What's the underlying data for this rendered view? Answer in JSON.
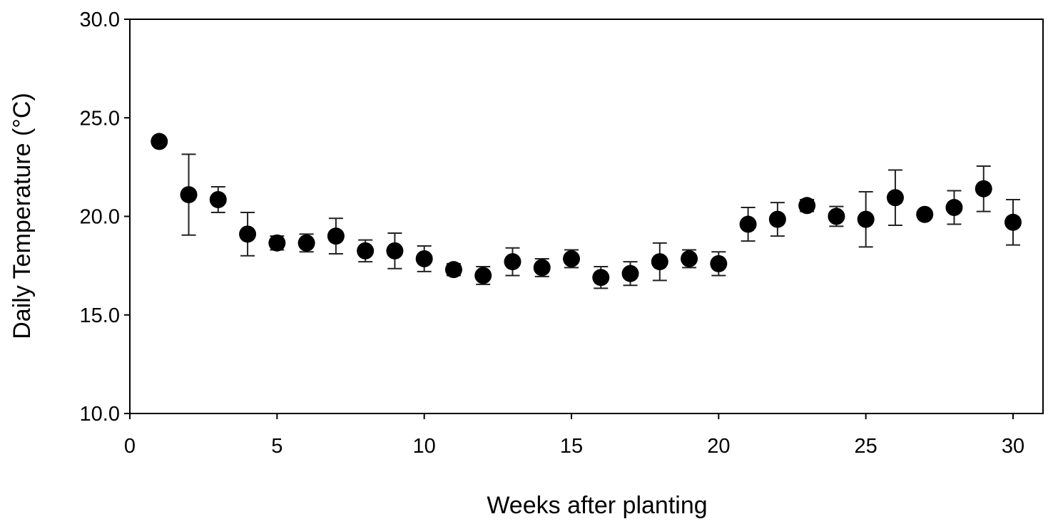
{
  "chart_data": {
    "type": "scatter",
    "xlabel": "Weeks after planting",
    "ylabel": "Daily Temperature (°C)",
    "xlim": [
      0,
      30
    ],
    "ylim": [
      10,
      30
    ],
    "x_ticks": [
      "0",
      "5",
      "10",
      "15",
      "20",
      "25",
      "30"
    ],
    "y_ticks": [
      "10.0",
      "15.0",
      "20.0",
      "25.0",
      "30.0"
    ],
    "grid": false,
    "legend": "none",
    "marker_color": "#000000",
    "error_bar_color": "#222222",
    "series": [
      {
        "points": [
          {
            "x": 1,
            "y": 23.8,
            "err": 0.0
          },
          {
            "x": 2,
            "y": 21.1,
            "err": 2.05
          },
          {
            "x": 3,
            "y": 20.85,
            "err": 0.65
          },
          {
            "x": 4,
            "y": 19.1,
            "err": 1.1
          },
          {
            "x": 5,
            "y": 18.65,
            "err": 0.35
          },
          {
            "x": 6,
            "y": 18.65,
            "err": 0.45
          },
          {
            "x": 7,
            "y": 19.0,
            "err": 0.9
          },
          {
            "x": 8,
            "y": 18.25,
            "err": 0.55
          },
          {
            "x": 9,
            "y": 18.25,
            "err": 0.9
          },
          {
            "x": 10,
            "y": 17.85,
            "err": 0.65
          },
          {
            "x": 11,
            "y": 17.3,
            "err": 0.3
          },
          {
            "x": 12,
            "y": 17.0,
            "err": 0.45
          },
          {
            "x": 13,
            "y": 17.7,
            "err": 0.7
          },
          {
            "x": 14,
            "y": 17.4,
            "err": 0.45
          },
          {
            "x": 15,
            "y": 17.85,
            "err": 0.45
          },
          {
            "x": 16,
            "y": 16.9,
            "err": 0.55
          },
          {
            "x": 17,
            "y": 17.1,
            "err": 0.6
          },
          {
            "x": 18,
            "y": 17.7,
            "err": 0.95
          },
          {
            "x": 19,
            "y": 17.85,
            "err": 0.45
          },
          {
            "x": 20,
            "y": 17.6,
            "err": 0.6
          },
          {
            "x": 21,
            "y": 19.6,
            "err": 0.85
          },
          {
            "x": 22,
            "y": 19.85,
            "err": 0.85
          },
          {
            "x": 23,
            "y": 20.55,
            "err": 0.3
          },
          {
            "x": 24,
            "y": 20.0,
            "err": 0.5
          },
          {
            "x": 25,
            "y": 19.85,
            "err": 1.4
          },
          {
            "x": 26,
            "y": 20.95,
            "err": 1.4
          },
          {
            "x": 27,
            "y": 20.1,
            "err": 0.2
          },
          {
            "x": 28,
            "y": 20.45,
            "err": 0.85
          },
          {
            "x": 29,
            "y": 21.4,
            "err": 1.15
          },
          {
            "x": 30,
            "y": 19.7,
            "err": 1.15
          }
        ]
      }
    ]
  }
}
